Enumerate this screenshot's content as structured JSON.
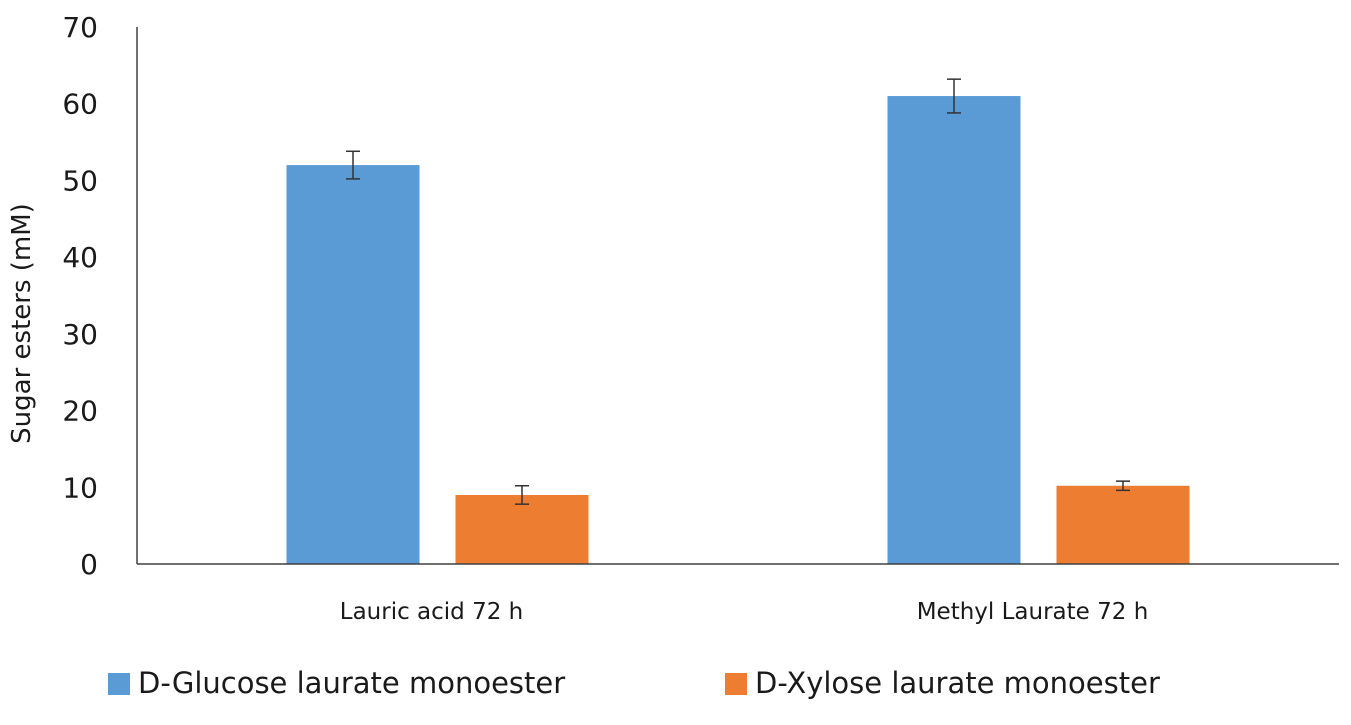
{
  "chart_data": {
    "type": "bar",
    "title": "",
    "xlabel": "",
    "ylabel": "Sugar esters (mM)",
    "ylim": [
      0,
      70
    ],
    "yticks": [
      0,
      10,
      20,
      30,
      40,
      50,
      60,
      70
    ],
    "categories": [
      "Lauric acid 72 h",
      "Methyl Laurate 72 h"
    ],
    "series": [
      {
        "name": "D-Glucose laurate monoester",
        "color": "#5B9BD5",
        "values": [
          52.0,
          61.0
        ],
        "errors": [
          1.8,
          2.2
        ]
      },
      {
        "name": "D-Xylose laurate monoester",
        "color": "#ED7D31",
        "values": [
          9.0,
          10.2
        ],
        "errors": [
          1.2,
          0.6
        ]
      }
    ],
    "grid": false,
    "legend_position": "bottom"
  }
}
